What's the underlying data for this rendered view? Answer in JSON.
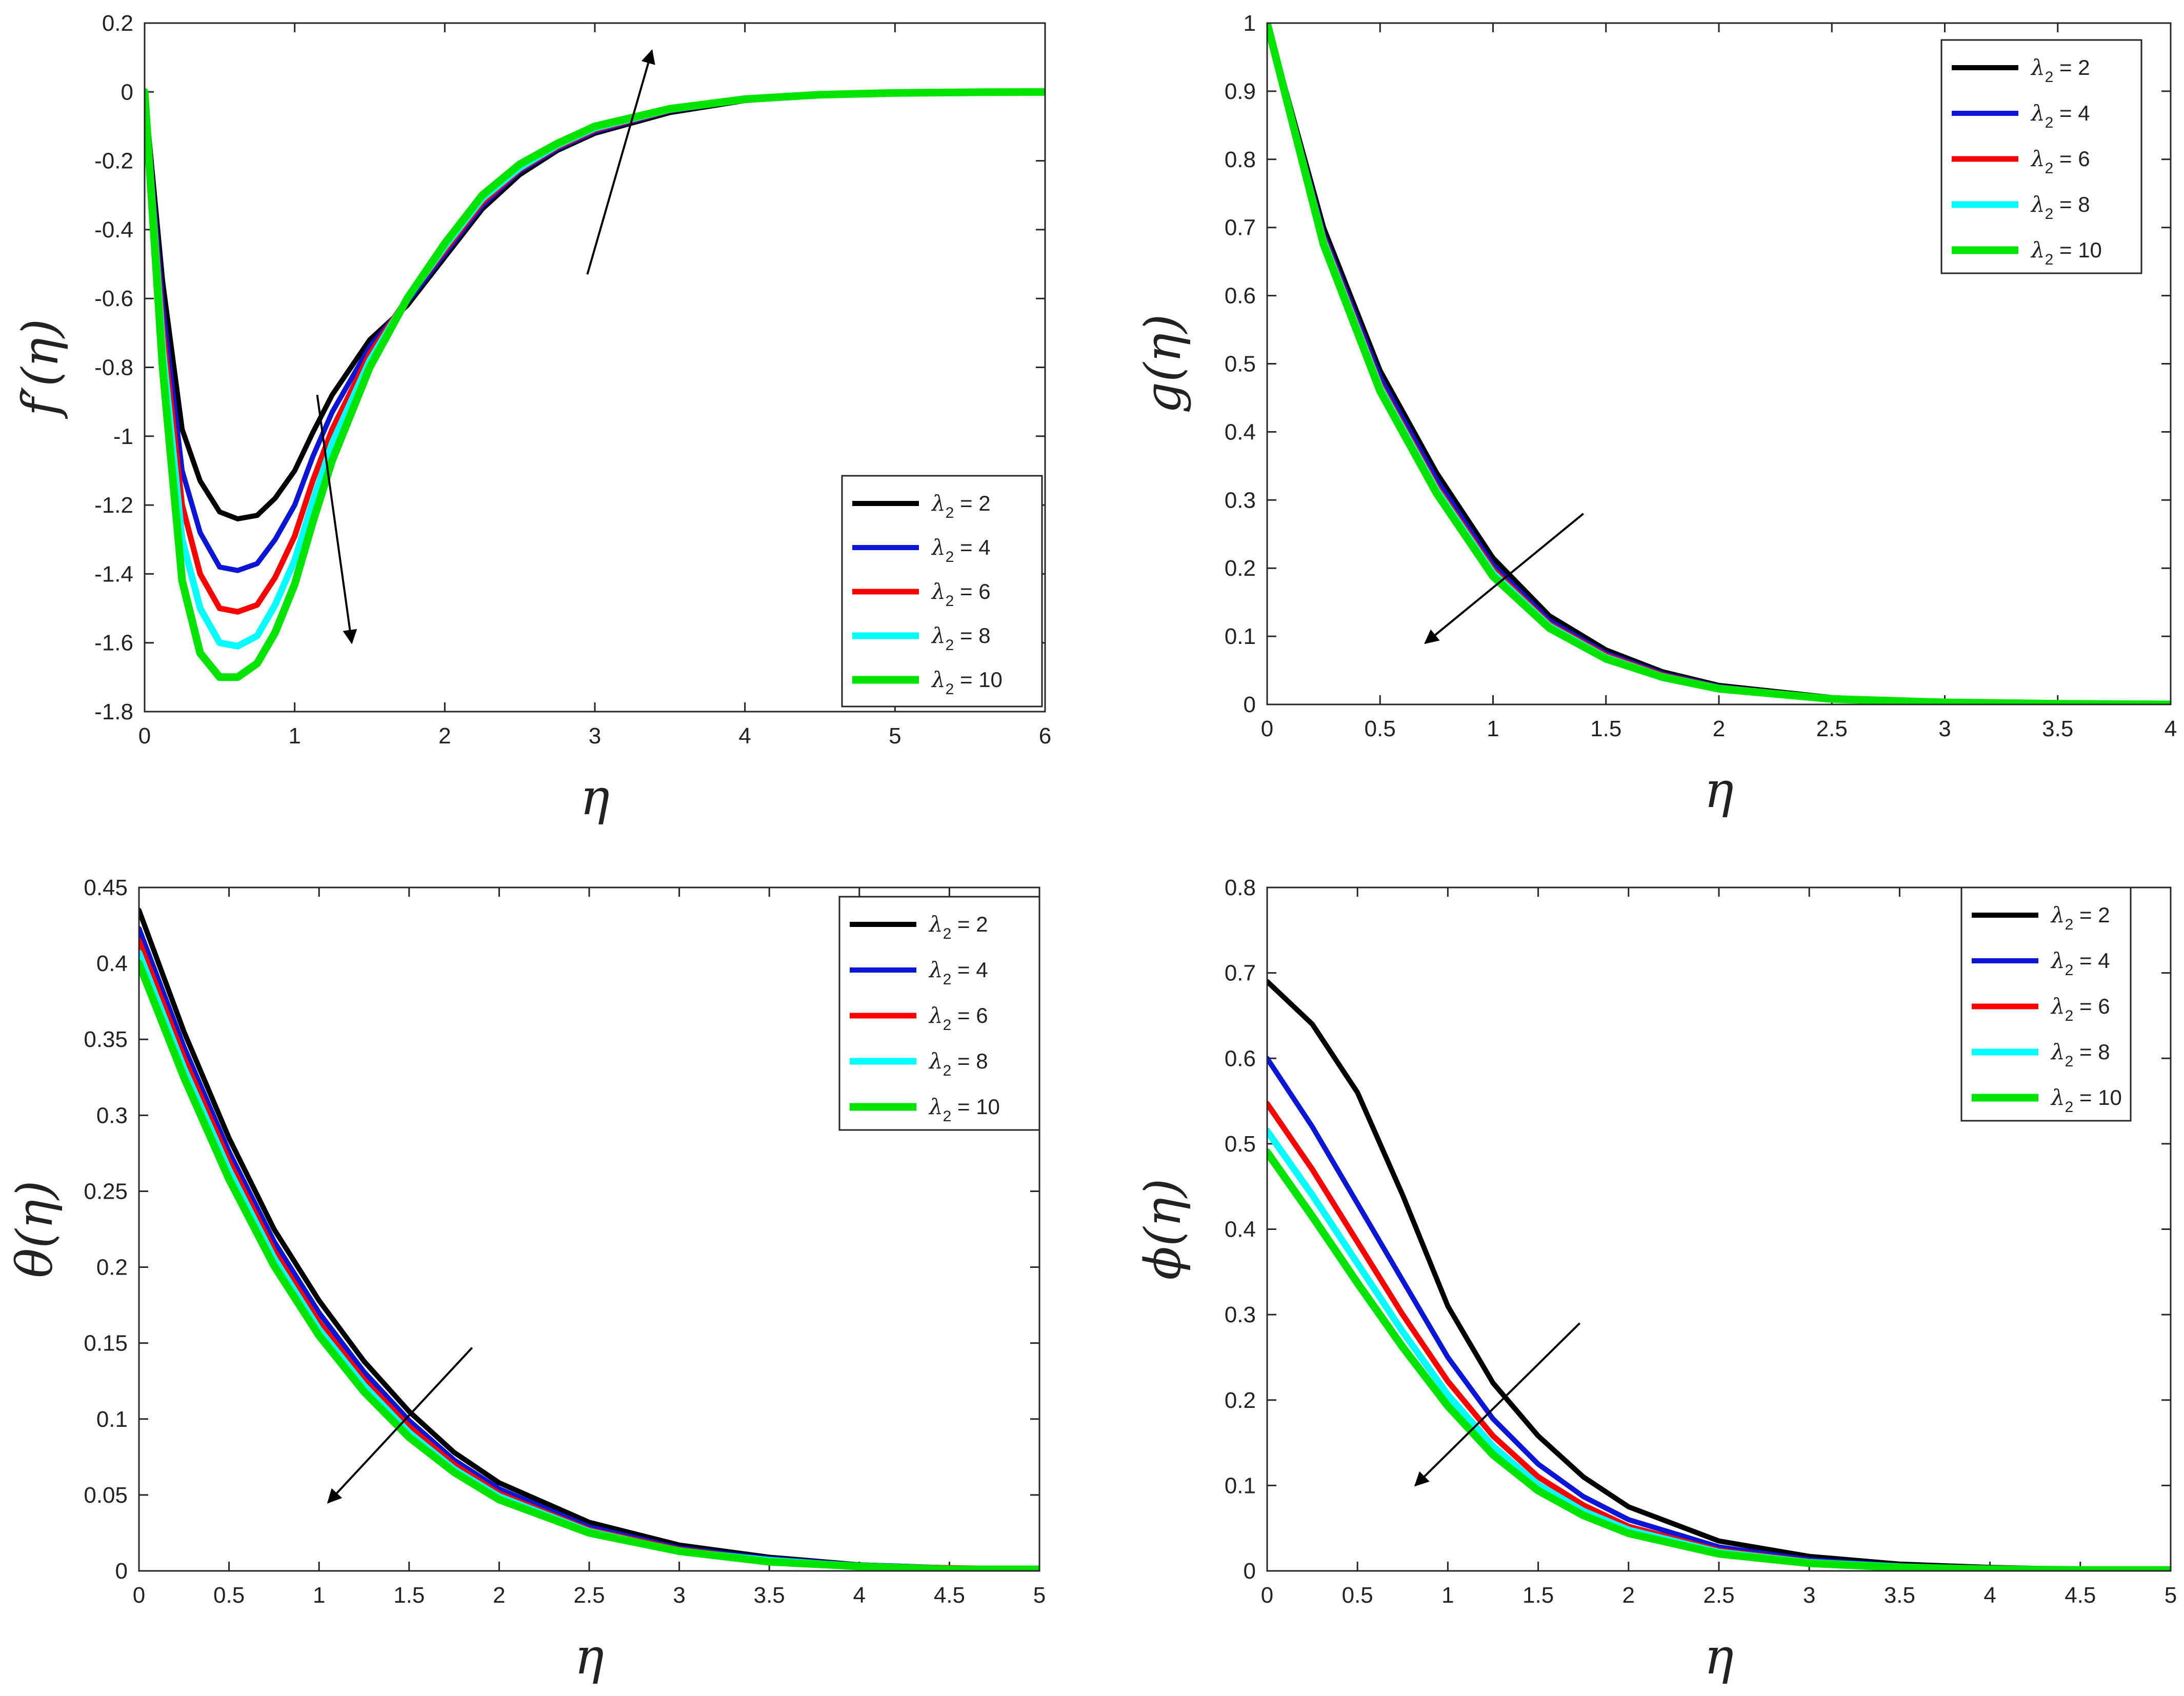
{
  "legend_title": "λ",
  "legend_subscript": "2",
  "legend_entries": [
    "2",
    "4",
    "6",
    "8",
    "10"
  ],
  "series_colors": [
    "#000000",
    "#0b15d8",
    "#ff0000",
    "#00ffff",
    "#00e400"
  ],
  "chart_data": [
    {
      "id": "f-prime",
      "type": "line",
      "ylabel": "f′(η)",
      "xlabel": "η",
      "xlim": [
        0,
        6
      ],
      "ylim": [
        -1.8,
        0.2
      ],
      "xticks": [
        0,
        1,
        2,
        3,
        4,
        5,
        6
      ],
      "xtick_labels": [
        "0",
        "1",
        "2",
        "3",
        "4",
        "5",
        "6"
      ],
      "yticks": [
        -1.8,
        -1.6,
        -1.4,
        -1.2,
        -1,
        -0.8,
        -0.6,
        -0.4,
        -0.2,
        0,
        0.2
      ],
      "ytick_labels": [
        "-1.8",
        "-1.6",
        "-1.4",
        "-1.2",
        "-1",
        "-0.8",
        "-0.6",
        "-0.4",
        "-0.2",
        "0",
        "0.2"
      ],
      "legend_position": "bottom-right",
      "x": [
        0,
        0.12,
        0.25,
        0.37,
        0.5,
        0.62,
        0.75,
        0.87,
        1.0,
        1.12,
        1.25,
        1.5,
        1.75,
        2.0,
        2.25,
        2.5,
        2.75,
        3.0,
        3.5,
        4.0,
        4.5,
        5.0,
        5.5,
        6.0
      ],
      "series": [
        {
          "name": "λ2 = 2",
          "values": [
            0,
            -0.55,
            -0.98,
            -1.13,
            -1.22,
            -1.24,
            -1.23,
            -1.18,
            -1.1,
            -0.99,
            -0.88,
            -0.72,
            -0.62,
            -0.48,
            -0.34,
            -0.24,
            -0.17,
            -0.12,
            -0.06,
            -0.025,
            -0.01,
            -0.003,
            -0.001,
            0
          ]
        },
        {
          "name": "λ2 = 4",
          "values": [
            0,
            -0.62,
            -1.1,
            -1.28,
            -1.38,
            -1.39,
            -1.37,
            -1.3,
            -1.2,
            -1.06,
            -0.93,
            -0.74,
            -0.61,
            -0.47,
            -0.33,
            -0.23,
            -0.165,
            -0.115,
            -0.055,
            -0.024,
            -0.01,
            -0.003,
            -0.001,
            0
          ]
        },
        {
          "name": "λ2 = 6",
          "values": [
            0,
            -0.68,
            -1.2,
            -1.4,
            -1.5,
            -1.51,
            -1.49,
            -1.41,
            -1.29,
            -1.13,
            -0.98,
            -0.76,
            -0.6,
            -0.46,
            -0.32,
            -0.225,
            -0.16,
            -0.11,
            -0.053,
            -0.023,
            -0.009,
            -0.003,
            -0.001,
            0
          ]
        },
        {
          "name": "λ2 = 8",
          "values": [
            0,
            -0.74,
            -1.3,
            -1.5,
            -1.6,
            -1.61,
            -1.58,
            -1.49,
            -1.36,
            -1.19,
            -1.02,
            -0.78,
            -0.6,
            -0.45,
            -0.31,
            -0.22,
            -0.155,
            -0.105,
            -0.051,
            -0.022,
            -0.009,
            -0.003,
            -0.001,
            0
          ]
        },
        {
          "name": "λ2 = 10",
          "values": [
            0,
            -0.8,
            -1.42,
            -1.63,
            -1.7,
            -1.7,
            -1.66,
            -1.57,
            -1.43,
            -1.25,
            -1.07,
            -0.8,
            -0.6,
            -0.44,
            -0.3,
            -0.21,
            -0.15,
            -0.1,
            -0.049,
            -0.021,
            -0.008,
            -0.003,
            -0.001,
            0
          ]
        }
      ],
      "annotations": [
        {
          "label": "arrow-down",
          "from": [
            1.15,
            -0.88
          ],
          "to": [
            1.38,
            -1.6
          ]
        },
        {
          "label": "arrow-up",
          "from": [
            2.95,
            -0.53
          ],
          "to": [
            3.38,
            0.12
          ]
        }
      ]
    },
    {
      "id": "g",
      "type": "line",
      "ylabel": "g(η)",
      "xlabel": "η",
      "xlim": [
        0,
        4
      ],
      "ylim": [
        0,
        1
      ],
      "xticks": [
        0,
        0.5,
        1,
        1.5,
        2,
        2.5,
        3,
        3.5,
        4
      ],
      "xtick_labels": [
        "0",
        "0.5",
        "1",
        "1.5",
        "2",
        "2.5",
        "3",
        "3.5",
        "4"
      ],
      "yticks": [
        0,
        0.1,
        0.2,
        0.3,
        0.4,
        0.5,
        0.6,
        0.7,
        0.8,
        0.9,
        1
      ],
      "ytick_labels": [
        "0",
        "0.1",
        "0.2",
        "0.3",
        "0.4",
        "0.5",
        "0.6",
        "0.7",
        "0.8",
        "0.9",
        "1"
      ],
      "legend_position": "top-right",
      "x": [
        0,
        0.25,
        0.5,
        0.75,
        1.0,
        1.25,
        1.5,
        1.75,
        2.0,
        2.5,
        3.0,
        3.5,
        4.0
      ],
      "series": [
        {
          "name": "λ2 = 2",
          "values": [
            1,
            0.7,
            0.49,
            0.34,
            0.215,
            0.13,
            0.08,
            0.048,
            0.028,
            0.01,
            0.003,
            0.001,
            0
          ]
        },
        {
          "name": "λ2 = 4",
          "values": [
            1,
            0.69,
            0.48,
            0.33,
            0.205,
            0.123,
            0.075,
            0.045,
            0.026,
            0.009,
            0.003,
            0.001,
            0
          ]
        },
        {
          "name": "λ2 = 6",
          "values": [
            1,
            0.685,
            0.47,
            0.32,
            0.198,
            0.118,
            0.072,
            0.043,
            0.025,
            0.009,
            0.003,
            0.001,
            0
          ]
        },
        {
          "name": "λ2 = 8",
          "values": [
            1,
            0.68,
            0.465,
            0.315,
            0.193,
            0.115,
            0.069,
            0.041,
            0.024,
            0.008,
            0.003,
            0.001,
            0
          ]
        },
        {
          "name": "λ2 = 10",
          "values": [
            1,
            0.675,
            0.46,
            0.31,
            0.188,
            0.112,
            0.067,
            0.04,
            0.023,
            0.008,
            0.003,
            0.001,
            0
          ]
        }
      ],
      "annotations": [
        {
          "label": "arrow-down",
          "from": [
            1.4,
            0.28
          ],
          "to": [
            0.7,
            0.09
          ]
        }
      ]
    },
    {
      "id": "theta",
      "type": "line",
      "ylabel": "θ(η)",
      "xlabel": "η",
      "xlim": [
        0,
        5
      ],
      "ylim": [
        0,
        0.45
      ],
      "xticks": [
        0,
        0.5,
        1,
        1.5,
        2,
        2.5,
        3,
        3.5,
        4,
        4.5,
        5
      ],
      "xtick_labels": [
        "0",
        "0.5",
        "1",
        "1.5",
        "2",
        "2.5",
        "3",
        "3.5",
        "4",
        "4.5",
        "5"
      ],
      "yticks": [
        0,
        0.05,
        0.1,
        0.15,
        0.2,
        0.25,
        0.3,
        0.35,
        0.4,
        0.45
      ],
      "ytick_labels": [
        "0",
        "0.05",
        "0.1",
        "0.15",
        "0.2",
        "0.25",
        "0.3",
        "0.35",
        "0.4",
        "0.45"
      ],
      "legend_position": "top-right",
      "x": [
        0,
        0.25,
        0.5,
        0.75,
        1.0,
        1.25,
        1.5,
        1.75,
        2.0,
        2.5,
        3.0,
        3.5,
        4.0,
        4.5,
        5.0
      ],
      "series": [
        {
          "name": "λ2 = 2",
          "values": [
            0.435,
            0.355,
            0.285,
            0.225,
            0.178,
            0.138,
            0.105,
            0.078,
            0.058,
            0.032,
            0.017,
            0.009,
            0.004,
            0.002,
            0.001
          ]
        },
        {
          "name": "λ2 = 4",
          "values": [
            0.423,
            0.345,
            0.276,
            0.217,
            0.17,
            0.131,
            0.099,
            0.073,
            0.054,
            0.029,
            0.015,
            0.008,
            0.004,
            0.002,
            0.001
          ]
        },
        {
          "name": "λ2 = 6",
          "values": [
            0.415,
            0.338,
            0.27,
            0.211,
            0.164,
            0.126,
            0.095,
            0.07,
            0.051,
            0.027,
            0.014,
            0.007,
            0.003,
            0.002,
            0.001
          ]
        },
        {
          "name": "λ2 = 8",
          "values": [
            0.407,
            0.331,
            0.264,
            0.206,
            0.159,
            0.122,
            0.091,
            0.067,
            0.049,
            0.026,
            0.013,
            0.007,
            0.003,
            0.001,
            0.001
          ]
        },
        {
          "name": "λ2 = 10",
          "values": [
            0.4,
            0.325,
            0.258,
            0.201,
            0.155,
            0.118,
            0.088,
            0.065,
            0.047,
            0.025,
            0.013,
            0.006,
            0.003,
            0.001,
            0.001
          ]
        }
      ],
      "annotations": [
        {
          "label": "arrow-down",
          "from": [
            1.85,
            0.147
          ],
          "to": [
            1.05,
            0.045
          ]
        }
      ]
    },
    {
      "id": "phi",
      "type": "line",
      "ylabel": "ϕ(η)",
      "xlabel": "η",
      "xlim": [
        0,
        5
      ],
      "ylim": [
        0,
        0.8
      ],
      "xticks": [
        0,
        0.5,
        1,
        1.5,
        2,
        2.5,
        3,
        3.5,
        4,
        4.5,
        5
      ],
      "xtick_labels": [
        "0",
        "0.5",
        "1",
        "1.5",
        "2",
        "2.5",
        "3",
        "3.5",
        "4",
        "4.5",
        "5"
      ],
      "yticks": [
        0,
        0.1,
        0.2,
        0.3,
        0.4,
        0.5,
        0.6,
        0.7,
        0.8
      ],
      "ytick_labels": [
        "0",
        "0.1",
        "0.2",
        "0.3",
        "0.4",
        "0.5",
        "0.6",
        "0.7",
        "0.8"
      ],
      "legend_position": "top-right",
      "x": [
        0,
        0.25,
        0.5,
        0.75,
        1.0,
        1.25,
        1.5,
        1.75,
        2.0,
        2.5,
        3.0,
        3.5,
        4.0,
        4.5,
        5.0
      ],
      "series": [
        {
          "name": "λ2 = 2",
          "values": [
            0.69,
            0.64,
            0.56,
            0.44,
            0.31,
            0.22,
            0.158,
            0.11,
            0.075,
            0.035,
            0.017,
            0.008,
            0.004,
            0.002,
            0.001
          ]
        },
        {
          "name": "λ2 = 4",
          "values": [
            0.6,
            0.52,
            0.43,
            0.34,
            0.25,
            0.178,
            0.125,
            0.087,
            0.06,
            0.028,
            0.013,
            0.006,
            0.003,
            0.002,
            0.001
          ]
        },
        {
          "name": "λ2 = 6",
          "values": [
            0.547,
            0.47,
            0.385,
            0.3,
            0.222,
            0.158,
            0.11,
            0.077,
            0.052,
            0.024,
            0.011,
            0.005,
            0.003,
            0.001,
            0.001
          ]
        },
        {
          "name": "λ2 = 8",
          "values": [
            0.515,
            0.44,
            0.36,
            0.28,
            0.206,
            0.146,
            0.101,
            0.07,
            0.048,
            0.022,
            0.01,
            0.005,
            0.002,
            0.001,
            0.001
          ]
        },
        {
          "name": "λ2 = 10",
          "values": [
            0.49,
            0.415,
            0.337,
            0.262,
            0.193,
            0.136,
            0.094,
            0.065,
            0.044,
            0.02,
            0.009,
            0.004,
            0.002,
            0.001,
            0.001
          ]
        }
      ],
      "annotations": [
        {
          "label": "arrow-down",
          "from": [
            1.73,
            0.29
          ],
          "to": [
            0.82,
            0.1
          ]
        }
      ]
    }
  ]
}
